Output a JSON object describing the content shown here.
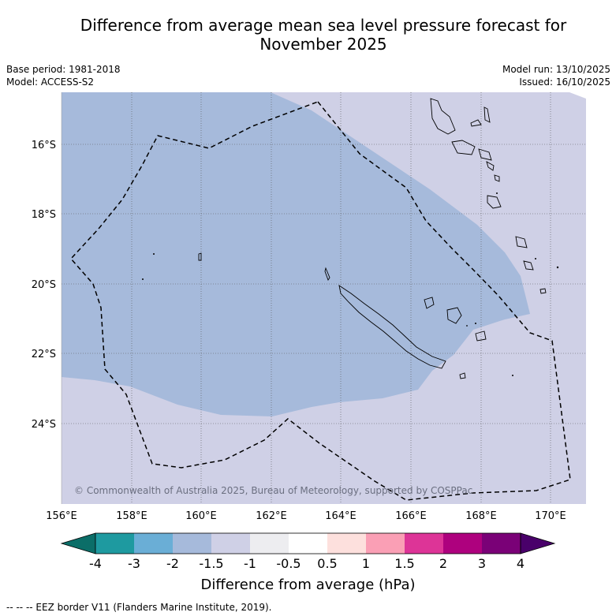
{
  "title_line1": "Difference from average mean sea level pressure forecast for",
  "title_line2": "November 2025",
  "base_period": "Base period: 1981-2018",
  "model": "Model: ACCESS-S2",
  "model_run": "Model run: 13/10/2025",
  "issued": "Issued: 16/10/2025",
  "copyright": "© Commonwealth of Australia 2025, Bureau of Meteorology, supported by COSPPac",
  "lat_labels": [
    "16°S",
    "18°S",
    "20°S",
    "22°S",
    "24°S"
  ],
  "lon_labels": [
    "156°E",
    "158°E",
    "160°E",
    "162°E",
    "164°E",
    "166°E",
    "168°E",
    "170°E"
  ],
  "colorbar": {
    "title": "Difference from average (hPa)",
    "tick_labels": [
      "-4",
      "-3",
      "-2",
      "-1.5",
      "-1",
      "-0.5",
      "0.5",
      "1",
      "1.5",
      "2",
      "3",
      "4"
    ],
    "colors": [
      "#0b6e68",
      "#1e9aa0",
      "#6aaed6",
      "#a6badb",
      "#cfd0e6",
      "#ededf0",
      "#ffffff",
      "#fde0dd",
      "#fa9fb5",
      "#dd3497",
      "#ae017e",
      "#7a0177",
      "#49006a"
    ]
  },
  "map_colors": {
    "negative_1_5_to_2": "#a6badb",
    "negative_1_to_1_5": "#cfd0e6"
  },
  "footer": "--  --  -- EEZ border V11 (Flanders Marine Institute, 2019)."
}
